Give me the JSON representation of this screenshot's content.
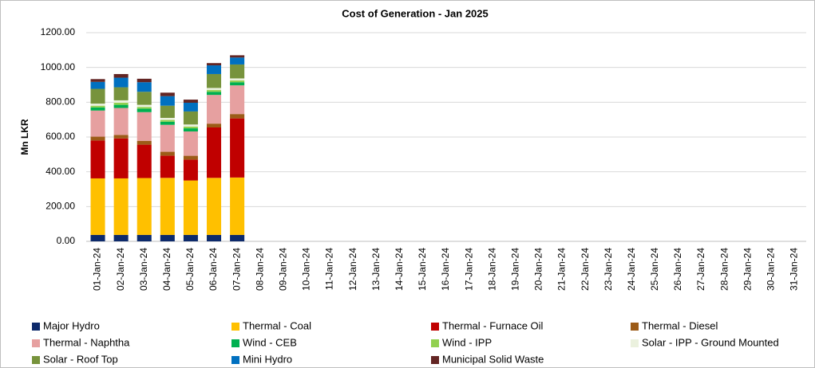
{
  "chart_data": {
    "type": "stacked-bar",
    "title": "Cost of Generation - Jan 2025",
    "y_label": "Mn LKR",
    "categories": [
      "01-Jan-24",
      "02-Jan-24",
      "03-Jan-24",
      "04-Jan-24",
      "05-Jan-24",
      "06-Jan-24",
      "07-Jan-24",
      "08-Jan-24",
      "09-Jan-24",
      "10-Jan-24",
      "11-Jan-24",
      "12-Jan-24",
      "13-Jan-24",
      "14-Jan-24",
      "15-Jan-24",
      "16-Jan-24",
      "17-Jan-24",
      "18-Jan-24",
      "19-Jan-24",
      "20-Jan-24",
      "21-Jan-24",
      "22-Jan-24",
      "23-Jan-24",
      "24-Jan-24",
      "25-Jan-24",
      "26-Jan-24",
      "27-Jan-24",
      "28-Jan-24",
      "29-Jan-24",
      "30-Jan-24",
      "31-Jan-24"
    ],
    "series": [
      {
        "name": "Major Hydro",
        "color": "#0d2a6b",
        "values": [
          37,
          37,
          37,
          37,
          37,
          37,
          37,
          null,
          null,
          null,
          null,
          null,
          null,
          null,
          null,
          null,
          null,
          null,
          null,
          null,
          null,
          null,
          null,
          null,
          null,
          null,
          null,
          null,
          null,
          null,
          null
        ]
      },
      {
        "name": "Thermal - Coal",
        "color": "#ffc000",
        "values": [
          325,
          325,
          327,
          328,
          313,
          328,
          330,
          null,
          null,
          null,
          null,
          null,
          null,
          null,
          null,
          null,
          null,
          null,
          null,
          null,
          null,
          null,
          null,
          null,
          null,
          null,
          null,
          null,
          null,
          null,
          null
        ]
      },
      {
        "name": "Thermal - Furnace Oil",
        "color": "#c00000",
        "values": [
          218,
          230,
          192,
          128,
          120,
          290,
          340,
          null,
          null,
          null,
          null,
          null,
          null,
          null,
          null,
          null,
          null,
          null,
          null,
          null,
          null,
          null,
          null,
          null,
          null,
          null,
          null,
          null,
          null,
          null,
          null
        ]
      },
      {
        "name": "Thermal - Diesel",
        "color": "#9c5b17",
        "values": [
          22,
          20,
          22,
          22,
          22,
          22,
          25,
          null,
          null,
          null,
          null,
          null,
          null,
          null,
          null,
          null,
          null,
          null,
          null,
          null,
          null,
          null,
          null,
          null,
          null,
          null,
          null,
          null,
          null,
          null,
          null
        ]
      },
      {
        "name": "Thermal - Naphtha",
        "color": "#e6a0a0",
        "values": [
          150,
          155,
          165,
          155,
          140,
          165,
          165,
          null,
          null,
          null,
          null,
          null,
          null,
          null,
          null,
          null,
          null,
          null,
          null,
          null,
          null,
          null,
          null,
          null,
          null,
          null,
          null,
          null,
          null,
          null,
          null
        ]
      },
      {
        "name": "Wind - CEB",
        "color": "#00b050",
        "values": [
          18,
          18,
          20,
          18,
          18,
          18,
          18,
          null,
          null,
          null,
          null,
          null,
          null,
          null,
          null,
          null,
          null,
          null,
          null,
          null,
          null,
          null,
          null,
          null,
          null,
          null,
          null,
          null,
          null,
          null,
          null
        ]
      },
      {
        "name": "Wind - IPP",
        "color": "#92d050",
        "values": [
          10,
          12,
          10,
          10,
          10,
          10,
          10,
          null,
          null,
          null,
          null,
          null,
          null,
          null,
          null,
          null,
          null,
          null,
          null,
          null,
          null,
          null,
          null,
          null,
          null,
          null,
          null,
          null,
          null,
          null,
          null
        ]
      },
      {
        "name": "Solar - IPP - Ground Mounted",
        "color": "#ebf1de",
        "values": [
          12,
          14,
          12,
          12,
          12,
          12,
          12,
          null,
          null,
          null,
          null,
          null,
          null,
          null,
          null,
          null,
          null,
          null,
          null,
          null,
          null,
          null,
          null,
          null,
          null,
          null,
          null,
          null,
          null,
          null,
          null
        ]
      },
      {
        "name": "Solar - Roof Top",
        "color": "#77933c",
        "values": [
          85,
          75,
          75,
          70,
          75,
          80,
          80,
          null,
          null,
          null,
          null,
          null,
          null,
          null,
          null,
          null,
          null,
          null,
          null,
          null,
          null,
          null,
          null,
          null,
          null,
          null,
          null,
          null,
          null,
          null,
          null
        ]
      },
      {
        "name": "Mini Hydro",
        "color": "#0070c0",
        "values": [
          40,
          55,
          55,
          55,
          50,
          50,
          40,
          null,
          null,
          null,
          null,
          null,
          null,
          null,
          null,
          null,
          null,
          null,
          null,
          null,
          null,
          null,
          null,
          null,
          null,
          null,
          null,
          null,
          null,
          null,
          null
        ]
      },
      {
        "name": "Municipal Solid Waste",
        "color": "#632523",
        "values": [
          16,
          21,
          20,
          20,
          18,
          13,
          13,
          null,
          null,
          null,
          null,
          null,
          null,
          null,
          null,
          null,
          null,
          null,
          null,
          null,
          null,
          null,
          null,
          null,
          null,
          null,
          null,
          null,
          null,
          null,
          null
        ]
      }
    ],
    "ylim": [
      0,
      1200
    ],
    "yticks": [
      {
        "value": 0,
        "label": "0.00"
      },
      {
        "value": 200,
        "label": "200.00"
      },
      {
        "value": 400,
        "label": "400.00"
      },
      {
        "value": 600,
        "label": "600.00"
      },
      {
        "value": 800,
        "label": "800.00"
      },
      {
        "value": 1000,
        "label": "1000.00"
      },
      {
        "value": 1200,
        "label": "1200.00"
      }
    ],
    "grid": true
  }
}
